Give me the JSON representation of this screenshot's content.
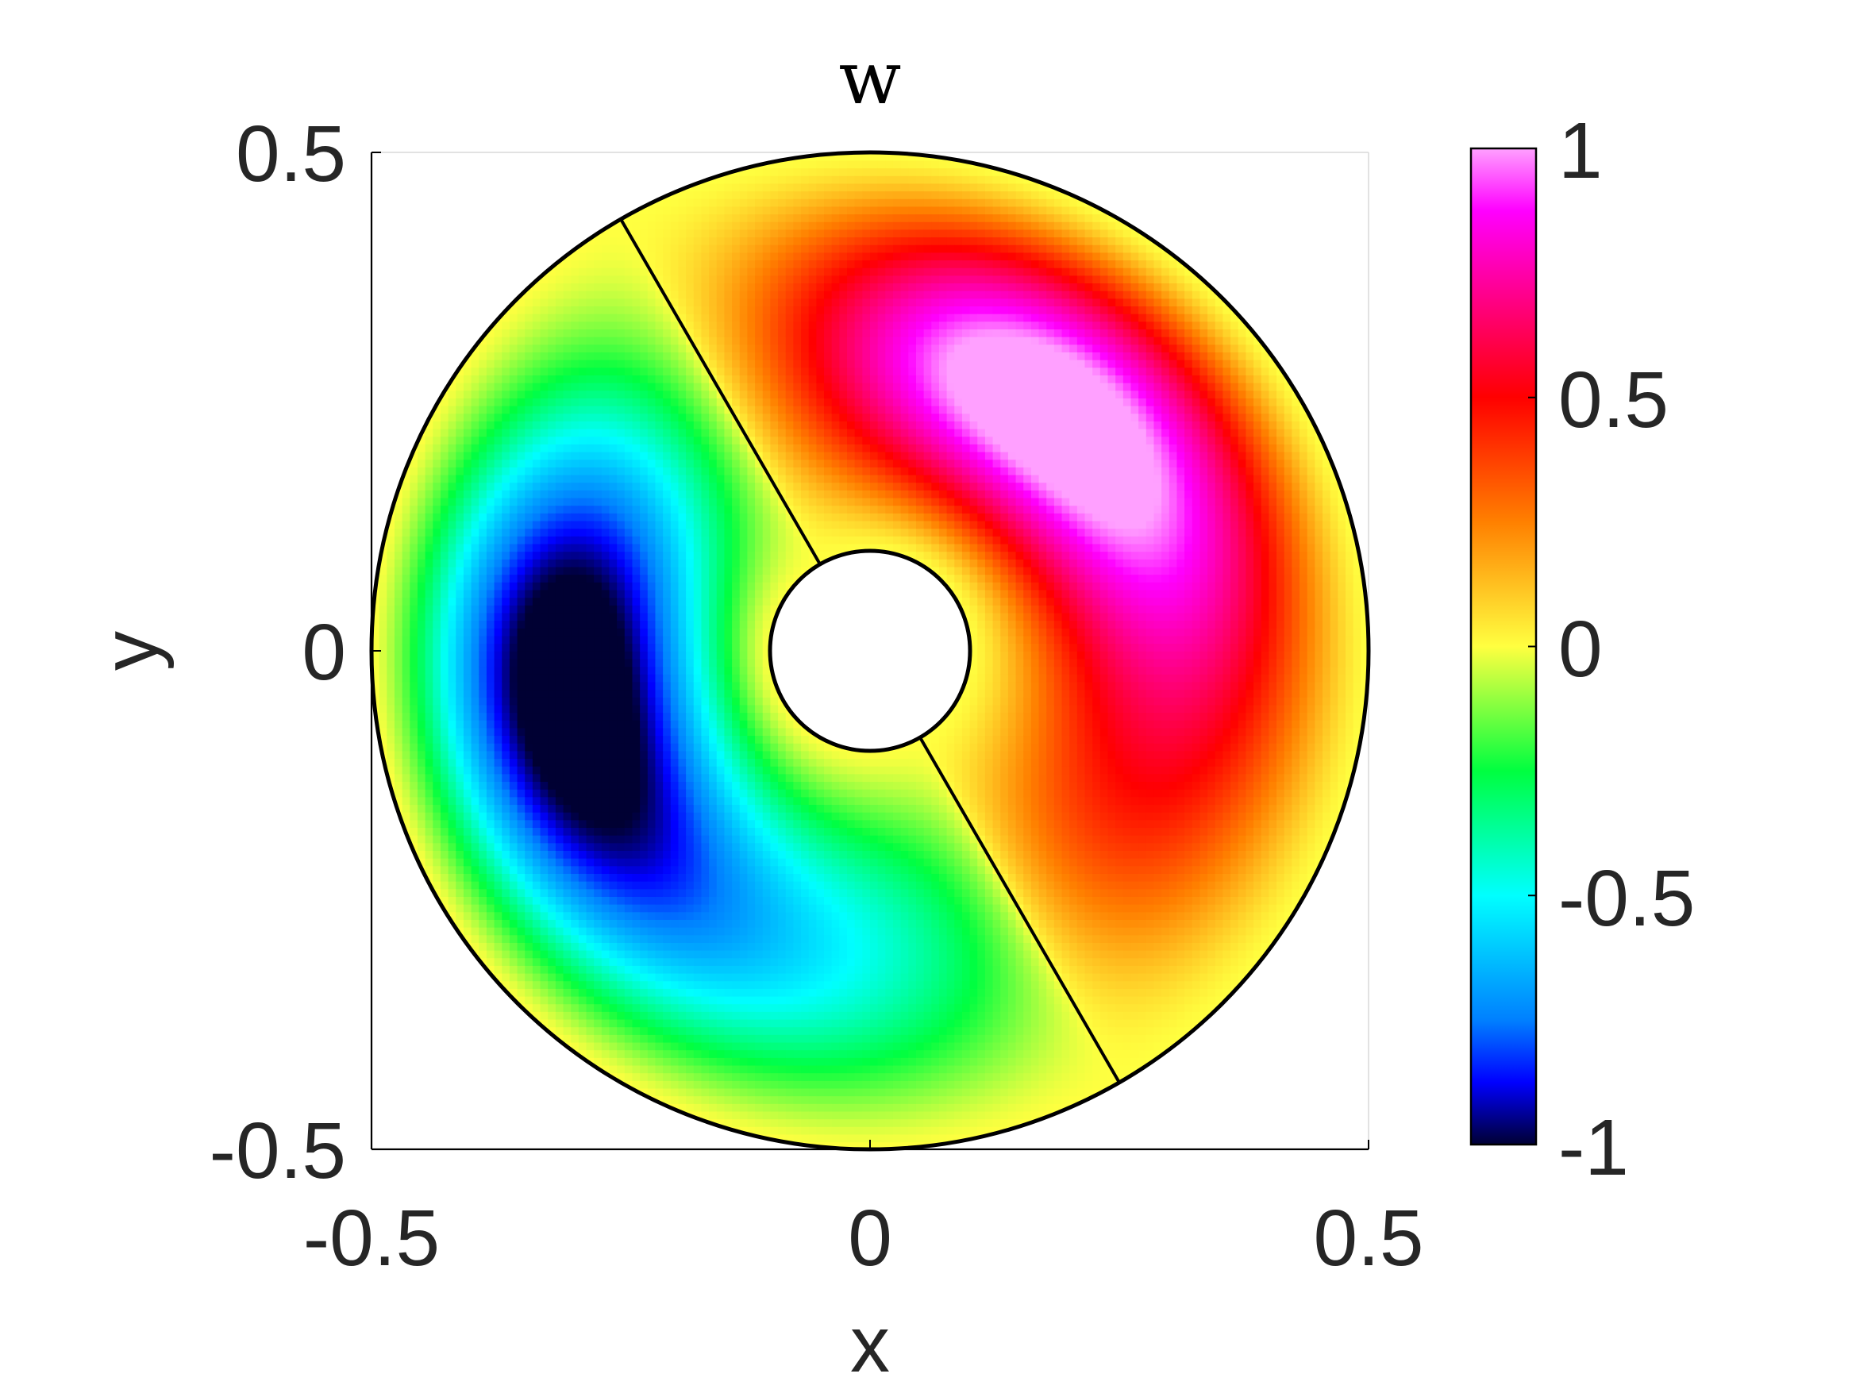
{
  "chart_data": {
    "type": "heatmap",
    "title": "w",
    "xlabel": "x",
    "ylabel": "y",
    "xlim": [
      -0.5,
      0.5
    ],
    "ylim": [
      -0.5,
      0.5
    ],
    "x_ticks": [
      "-0.5",
      "0",
      "0.5"
    ],
    "y_ticks": [
      "-0.5",
      "0",
      "0.5"
    ],
    "grid": true,
    "domain": {
      "shape": "annulus",
      "center": [
        0,
        0
      ],
      "outer_radius": 0.5,
      "inner_radius": 0.1
    },
    "nodal_line_angle_deg": 120,
    "extrema": [
      {
        "type": "max",
        "value": 1.0,
        "location": [
          0.22,
          0.18
        ]
      },
      {
        "type": "min",
        "value": -1.0,
        "location": [
          -0.28,
          -0.18
        ]
      }
    ],
    "colorbar": {
      "range": [
        -1,
        1
      ],
      "ticks": [
        "1",
        "0.5",
        "0",
        "-0.5",
        "-1"
      ],
      "colormap": [
        {
          "value": -1.0,
          "color": "#000033"
        },
        {
          "value": -0.875,
          "color": "#0000ff"
        },
        {
          "value": -0.75,
          "color": "#0080ff"
        },
        {
          "value": -0.5,
          "color": "#00ffff"
        },
        {
          "value": -0.25,
          "color": "#00ff40"
        },
        {
          "value": 0.0,
          "color": "#ffff40"
        },
        {
          "value": 0.25,
          "color": "#ff8000"
        },
        {
          "value": 0.5,
          "color": "#ff0000"
        },
        {
          "value": 0.75,
          "color": "#ff00aa"
        },
        {
          "value": 0.875,
          "color": "#ff00ff"
        },
        {
          "value": 1.0,
          "color": "#ffa0ff"
        }
      ]
    }
  }
}
